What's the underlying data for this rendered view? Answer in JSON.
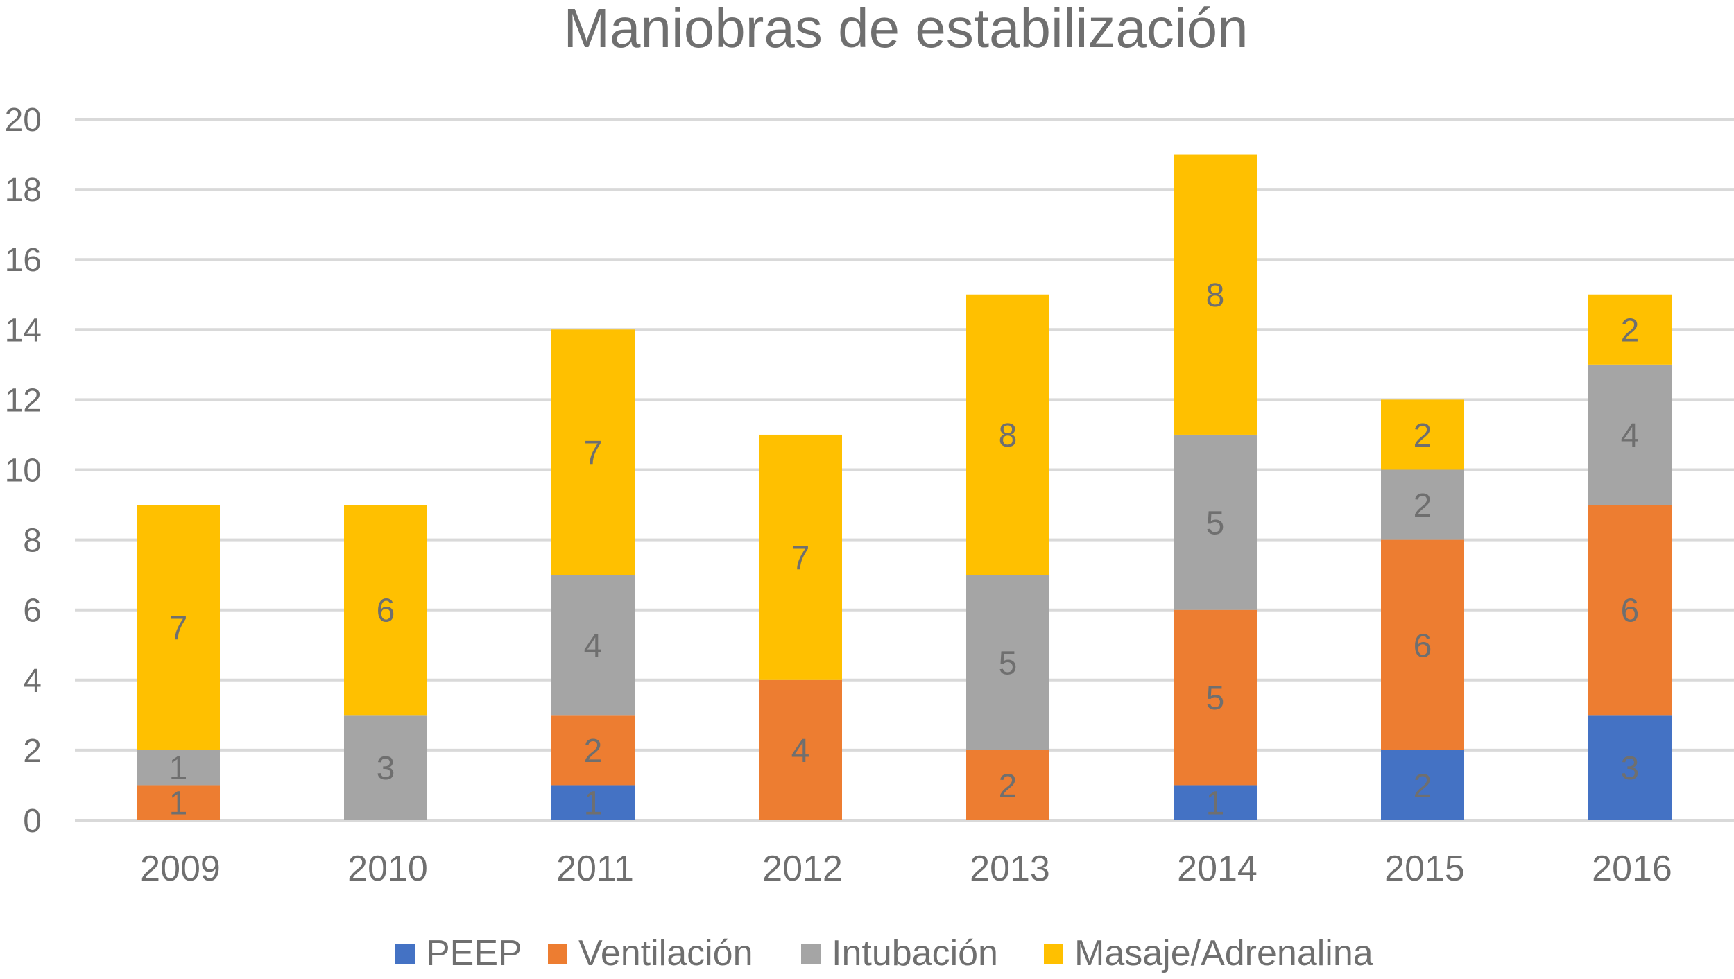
{
  "chart_data": {
    "type": "bar",
    "stacked": true,
    "title": "Maniobras de estabilización",
    "xlabel": "",
    "ylabel": "",
    "ylim": [
      0,
      20
    ],
    "yticks": [
      0,
      2,
      4,
      6,
      8,
      10,
      12,
      14,
      16,
      18,
      20
    ],
    "grid": true,
    "legend_position": "bottom",
    "categories": [
      "2009",
      "2010",
      "2011",
      "2012",
      "2013",
      "2014",
      "2015",
      "2016"
    ],
    "series": [
      {
        "name": "PEEP",
        "color": "#4472C4",
        "values": [
          0,
          0,
          1,
          0,
          0,
          1,
          2,
          3
        ]
      },
      {
        "name": "Ventilación",
        "color": "#ED7D31",
        "values": [
          1,
          0,
          2,
          4,
          2,
          5,
          6,
          6
        ]
      },
      {
        "name": "Intubación",
        "color": "#A5A5A5",
        "values": [
          1,
          3,
          4,
          0,
          5,
          5,
          2,
          4
        ]
      },
      {
        "name": "Masaje/Adrenalina",
        "color": "#FFC000",
        "values": [
          7,
          6,
          7,
          7,
          8,
          8,
          2,
          2
        ]
      }
    ]
  }
}
